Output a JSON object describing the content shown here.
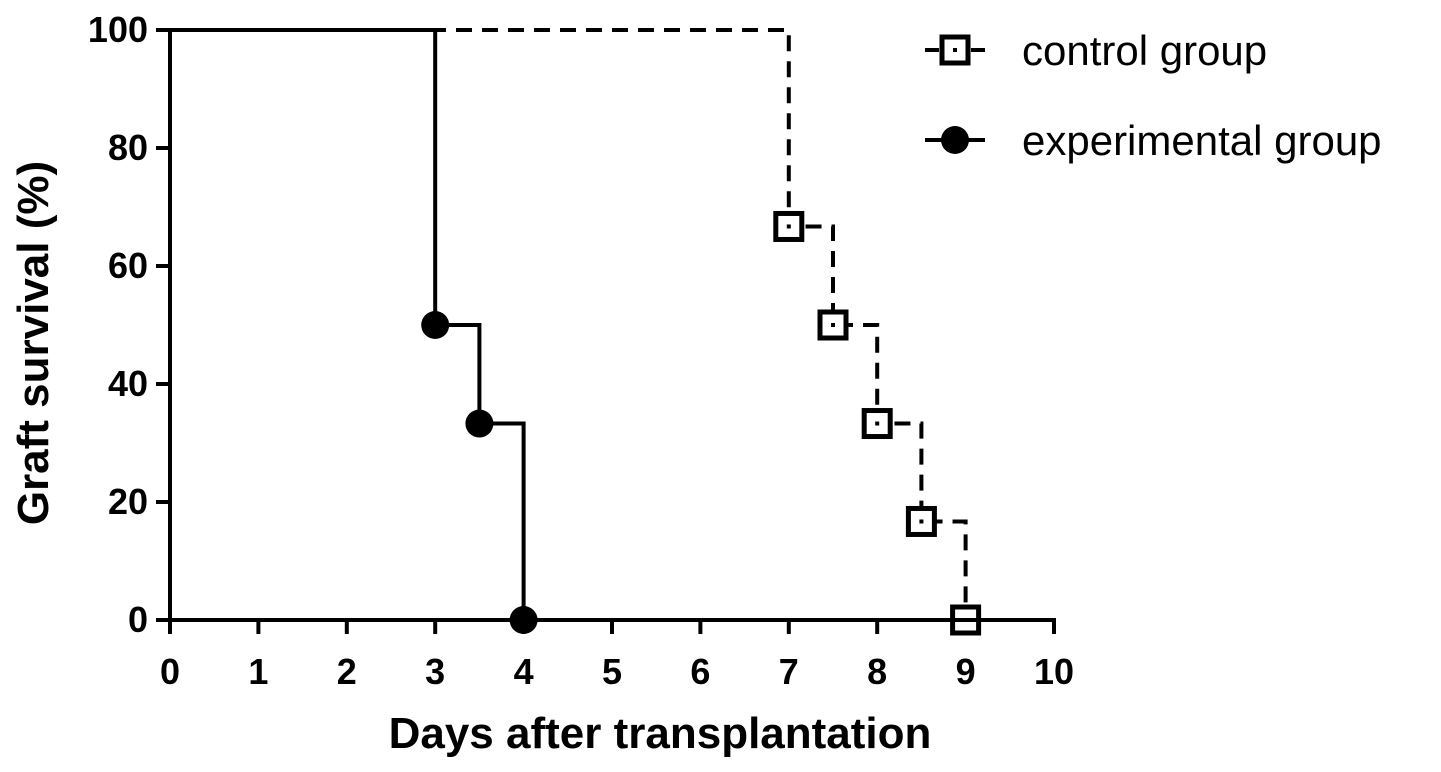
{
  "chart_data": {
    "type": "line",
    "subtype": "kaplan-meier step",
    "title": "",
    "xlabel": "Days after transplantation",
    "ylabel": "Graft survival (%)",
    "xlim": [
      0,
      10
    ],
    "ylim": [
      0,
      100
    ],
    "x_ticks": [
      "0",
      "1",
      "2",
      "3",
      "4",
      "5",
      "6",
      "7",
      "8",
      "9",
      "10"
    ],
    "y_ticks": [
      "0",
      "20",
      "40",
      "60",
      "80",
      "100"
    ],
    "grid": false,
    "legend_position": "top-right",
    "series": [
      {
        "name": "control group",
        "line_style": "dashed",
        "marker": "open-square",
        "color": "#000000",
        "start": [
          0,
          100
        ],
        "events": [
          {
            "x": 7,
            "y": 66.7
          },
          {
            "x": 7.5,
            "y": 50
          },
          {
            "x": 8,
            "y": 33.3
          },
          {
            "x": 8.5,
            "y": 16.7
          },
          {
            "x": 9,
            "y": 0
          }
        ]
      },
      {
        "name": "experimental group",
        "line_style": "solid",
        "marker": "filled-circle",
        "color": "#000000",
        "start": [
          0,
          100
        ],
        "events": [
          {
            "x": 3,
            "y": 50
          },
          {
            "x": 3.5,
            "y": 33.3
          },
          {
            "x": 4,
            "y": 0
          }
        ],
        "end": [
          10,
          0
        ]
      }
    ]
  }
}
